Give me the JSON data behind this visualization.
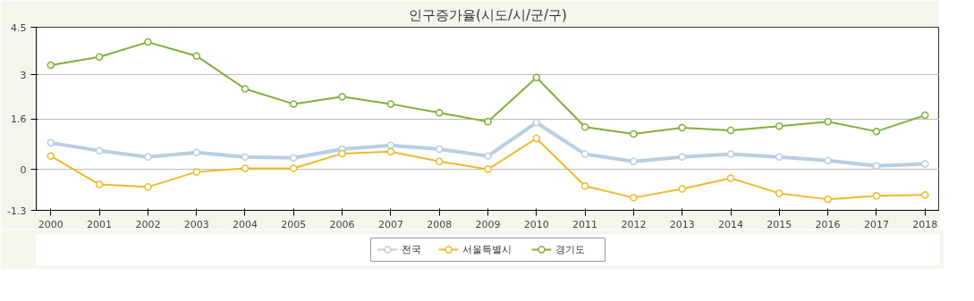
{
  "chart_data": {
    "type": "line",
    "title": "인구증가율(시도/시/군/구)",
    "categories": [
      "2000",
      "2001",
      "2002",
      "2003",
      "2004",
      "2005",
      "2006",
      "2007",
      "2008",
      "2009",
      "2010",
      "2011",
      "2012",
      "2013",
      "2014",
      "2015",
      "2016",
      "2017",
      "2018"
    ],
    "series": [
      {
        "name": "전국",
        "color": "#b8cfe3",
        "values": [
          0.84,
          0.59,
          0.39,
          0.53,
          0.39,
          0.36,
          0.64,
          0.76,
          0.64,
          0.42,
          1.48,
          0.48,
          0.25,
          0.39,
          0.48,
          0.39,
          0.28,
          0.11,
          0.17
        ]
      },
      {
        "name": "서울특별시",
        "color": "#f0b92e",
        "values": [
          0.42,
          -0.48,
          -0.56,
          -0.08,
          0.03,
          0.03,
          0.5,
          0.56,
          0.25,
          0.0,
          0.98,
          -0.53,
          -0.9,
          -0.62,
          -0.28,
          -0.76,
          -0.95,
          -0.84,
          -0.81
        ]
      },
      {
        "name": "경기도",
        "color": "#7fb03a",
        "values": [
          3.3,
          3.56,
          4.03,
          3.59,
          2.55,
          2.07,
          2.3,
          2.07,
          1.79,
          1.51,
          2.91,
          1.34,
          1.12,
          1.32,
          1.23,
          1.37,
          1.51,
          1.2,
          1.71
        ]
      }
    ],
    "ylim": [
      -1.3,
      4.5
    ],
    "yticks": [
      -1.3,
      0,
      1.6,
      3,
      4.5
    ],
    "grid": "y",
    "legend": "bottom",
    "marker": "circle",
    "line_style": "solid"
  }
}
